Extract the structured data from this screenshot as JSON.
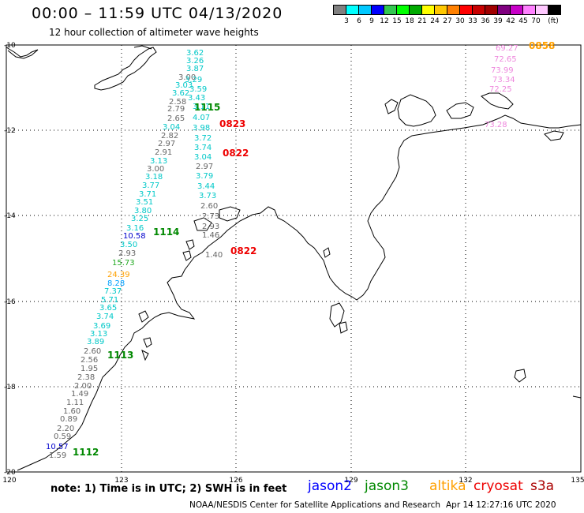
{
  "header": {
    "title": "00:00 – 11:59 UTC 04/13/2020",
    "subtitle": "12 hour collection of altimeter wave heights"
  },
  "colorbar": {
    "colors": [
      "#808080",
      "#00ffff",
      "#00c8ff",
      "#0000ff",
      "#32c850",
      "#00ff00",
      "#00aa00",
      "#ffff00",
      "#ffc800",
      "#ff8000",
      "#ff0000",
      "#c80000",
      "#a00000",
      "#800080",
      "#c800c8",
      "#ff80ff",
      "#ffc8ff",
      "#000000"
    ],
    "labels": [
      "3",
      "6",
      "9",
      "12",
      "15",
      "18",
      "21",
      "24",
      "27",
      "30",
      "33",
      "36",
      "39",
      "42",
      "45",
      "70",
      "(ft)"
    ]
  },
  "axes": {
    "lat_labels": [
      "-10",
      "-12",
      "-14",
      "-16",
      "-18",
      "-20"
    ],
    "lon_labels": [
      "120",
      "123",
      "126",
      "129",
      "132",
      "135"
    ]
  },
  "wave_heights": [
    {
      "v": "3.62",
      "c": "#00c8c8"
    },
    {
      "v": "3.26",
      "c": "#00c8c8"
    },
    {
      "v": "3.87",
      "c": "#00c8c8"
    },
    {
      "v": "3.00",
      "c": "#666666"
    },
    {
      "v": "3.29",
      "c": "#00c8c8"
    },
    {
      "v": "3.03",
      "c": "#00c8c8"
    },
    {
      "v": "3.59",
      "c": "#00c8c8"
    },
    {
      "v": "3.62",
      "c": "#00c8c8"
    },
    {
      "v": "3.43",
      "c": "#00c8c8"
    },
    {
      "v": "2.58",
      "c": "#666666"
    },
    {
      "v": "3.11",
      "c": "#00c8c8"
    },
    {
      "v": "2.79",
      "c": "#666666"
    },
    {
      "v": "2.65",
      "c": "#666666"
    },
    {
      "v": "4.07",
      "c": "#00c8c8"
    },
    {
      "v": "3.04",
      "c": "#00c8c8"
    },
    {
      "v": "3.98",
      "c": "#00c8c8"
    },
    {
      "v": "2.82",
      "c": "#666666"
    },
    {
      "v": "3.72",
      "c": "#00c8c8"
    },
    {
      "v": "2.97",
      "c": "#666666"
    },
    {
      "v": "3.74",
      "c": "#00c8c8"
    },
    {
      "v": "2.91",
      "c": "#666666"
    },
    {
      "v": "3.04",
      "c": "#00c8c8"
    },
    {
      "v": "3.13",
      "c": "#00c8c8"
    },
    {
      "v": "2.97",
      "c": "#666666"
    },
    {
      "v": "3.00",
      "c": "#666666"
    },
    {
      "v": "3.79",
      "c": "#00c8c8"
    },
    {
      "v": "3.18",
      "c": "#00c8c8"
    },
    {
      "v": "3.44",
      "c": "#00c8c8"
    },
    {
      "v": "3.77",
      "c": "#00c8c8"
    },
    {
      "v": "3.73",
      "c": "#00c8c8"
    },
    {
      "v": "3.71",
      "c": "#00c8c8"
    },
    {
      "v": "3.51",
      "c": "#00c8c8"
    },
    {
      "v": "2.60",
      "c": "#666666"
    },
    {
      "v": "3.80",
      "c": "#00c8c8"
    },
    {
      "v": "2.73",
      "c": "#666666"
    },
    {
      "v": "3.25",
      "c": "#00c8c8"
    },
    {
      "v": "2.93",
      "c": "#666666"
    },
    {
      "v": "3.16",
      "c": "#00c8c8"
    },
    {
      "v": "10.58",
      "c": "#0000cc"
    },
    {
      "v": "1.46",
      "c": "#666666"
    },
    {
      "v": "3.50",
      "c": "#00c8c8"
    },
    {
      "v": "2.93",
      "c": "#666666"
    },
    {
      "v": "1.40",
      "c": "#666666"
    },
    {
      "v": "15.73",
      "c": "#22aa22"
    },
    {
      "v": "24.39",
      "c": "#ffa000"
    },
    {
      "v": "8.28",
      "c": "#00a0ff"
    },
    {
      "v": "7.37",
      "c": "#00c8c8"
    },
    {
      "v": "5.71",
      "c": "#00c8c8"
    },
    {
      "v": "3.65",
      "c": "#00c8c8"
    },
    {
      "v": "3.74",
      "c": "#00c8c8"
    },
    {
      "v": "3.69",
      "c": "#00c8c8"
    },
    {
      "v": "3.13",
      "c": "#00c8c8"
    },
    {
      "v": "3.89",
      "c": "#00c8c8"
    },
    {
      "v": "2.60",
      "c": "#666666"
    },
    {
      "v": "2.56",
      "c": "#666666"
    },
    {
      "v": "1.95",
      "c": "#666666"
    },
    {
      "v": "2.38",
      "c": "#666666"
    },
    {
      "v": "2.00",
      "c": "#666666"
    },
    {
      "v": "1.49",
      "c": "#666666"
    },
    {
      "v": "1.11",
      "c": "#666666"
    },
    {
      "v": "1.60",
      "c": "#666666"
    },
    {
      "v": "0.89",
      "c": "#666666"
    },
    {
      "v": "2.20",
      "c": "#666666"
    },
    {
      "v": "0.59",
      "c": "#666666"
    },
    {
      "v": "10.57",
      "c": "#0000cc"
    },
    {
      "v": "1.59",
      "c": "#666666"
    },
    {
      "v": "69.27",
      "c": "#ee88dd"
    },
    {
      "v": "72.65",
      "c": "#ee88dd"
    },
    {
      "v": "73.99",
      "c": "#ee88dd"
    },
    {
      "v": "73.34",
      "c": "#ee88dd"
    },
    {
      "v": "72.25",
      "c": "#ee88dd"
    },
    {
      "v": "73.28",
      "c": "#ee88dd"
    }
  ],
  "pass_times": [
    {
      "t": "1115",
      "c": "#008800"
    },
    {
      "t": "0823",
      "c": "#ee0000"
    },
    {
      "t": "0822",
      "c": "#ee0000"
    },
    {
      "t": "1114",
      "c": "#008800"
    },
    {
      "t": "0822",
      "c": "#ee0000"
    },
    {
      "t": "1113",
      "c": "#008800"
    },
    {
      "t": "1112",
      "c": "#008800"
    },
    {
      "t": "0858",
      "c": "#ffa000"
    }
  ],
  "footer": {
    "note": "note: 1) Time is in UTC; 2) SWH is in feet",
    "legend": [
      {
        "name": "jason2",
        "color": "#0000ff"
      },
      {
        "name": "jason3",
        "color": "#008800"
      },
      {
        "name": "altika",
        "color": "#ffa000"
      },
      {
        "name": "cryosat",
        "color": "#ee0000"
      },
      {
        "name": "s3a",
        "color": "#aa0000"
      }
    ],
    "credits": "NOAA/NESDIS Center for Satellite Applications and Research",
    "timestamp": "Apr 14 12:27:16 UTC 2020"
  }
}
